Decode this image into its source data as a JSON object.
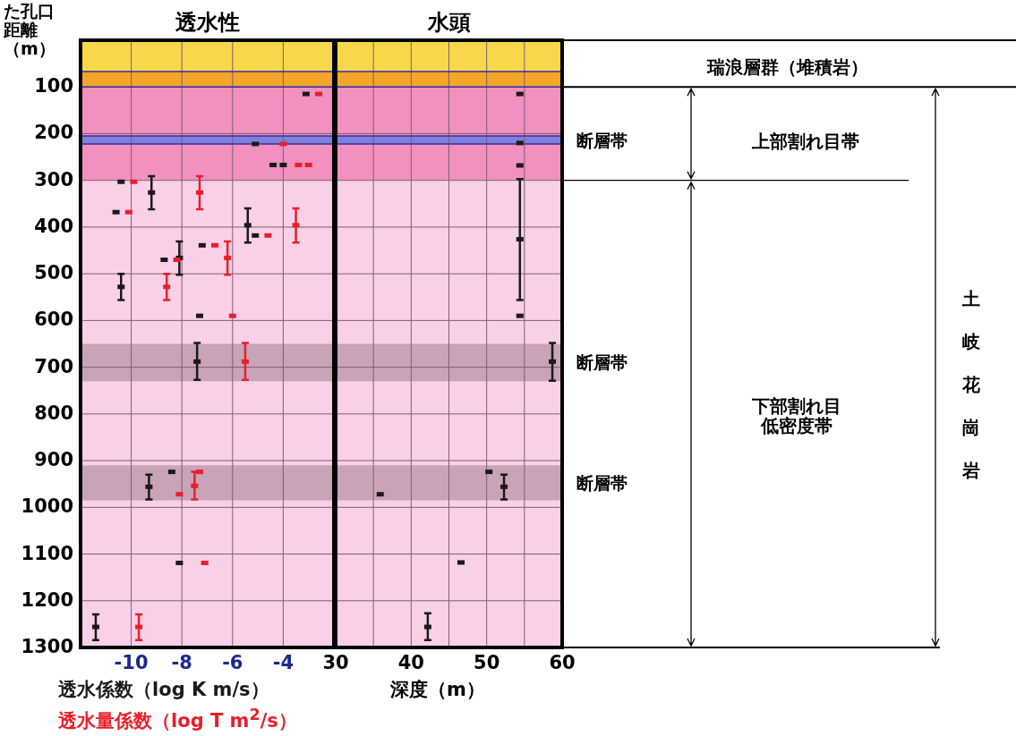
{
  "chart_data": [
    {
      "type": "scatter",
      "title": "透水性",
      "ylabel": "た孔口距離（m）",
      "xlim": [
        -12,
        -2
      ],
      "xticks": [
        -10,
        -8,
        -6,
        -4
      ],
      "ylim": [
        1300,
        0
      ],
      "yticks": [
        100,
        200,
        300,
        400,
        500,
        600,
        700,
        800,
        900,
        1000,
        1100,
        1200,
        1300
      ],
      "grid": true,
      "marker": "square",
      "bands": [
        {
          "axis": "y",
          "from": 0,
          "to": 67,
          "color": "#f8d84a"
        },
        {
          "axis": "y",
          "from": 67,
          "to": 100,
          "color": "#f4a52a"
        },
        {
          "axis": "y",
          "from": 100,
          "to": 300,
          "color": "#f290c0"
        },
        {
          "axis": "y",
          "from": 300,
          "to": 1300,
          "color": "#f9d0e8"
        },
        {
          "axis": "y",
          "from": 205,
          "to": 222,
          "color": "#8080d8"
        },
        {
          "axis": "y",
          "from": 650,
          "to": 730,
          "color": "#c9a3b7"
        },
        {
          "axis": "y",
          "from": 910,
          "to": 985,
          "color": "#c9a3b7"
        }
      ],
      "series": [
        {
          "name": "透水係数（log K m/s）",
          "color": "#1a1a1a",
          "x": [
            -3.1,
            -5.1,
            -4.4,
            -4.0,
            -10.4,
            -9.2,
            -10.6,
            -5.4,
            -5.1,
            -7.2,
            -8.1,
            -8.7,
            -10.4,
            -7.3,
            -7.4,
            -8.4,
            -9.3,
            -8.1,
            -11.4
          ],
          "values": [
            115,
            222,
            267,
            267,
            303,
            326,
            368,
            396,
            418,
            439,
            466,
            470,
            528,
            590,
            688,
            924,
            956,
            1119,
            1256
          ],
          "errors": [
            null,
            null,
            null,
            null,
            null,
            [
              291,
              362
            ],
            null,
            [
              360,
              433
            ],
            null,
            null,
            [
              431,
              502
            ],
            null,
            [
              500,
              556
            ],
            null,
            [
              648,
              727
            ],
            null,
            [
              930,
              983
            ],
            null,
            [
              1229,
              1284
            ]
          ]
        },
        {
          "name": "透水量係数（log T m$^{2}$/s）",
          "color": "#e8202a",
          "x": [
            -2.6,
            -4.0,
            -3.4,
            -3.0,
            -9.9,
            -7.3,
            -10.1,
            -3.5,
            -4.6,
            -6.7,
            -6.2,
            -8.2,
            -8.6,
            -6.0,
            -5.5,
            -7.3,
            -8.1,
            -7.5,
            -7.1,
            -9.7
          ],
          "values": [
            115,
            222,
            267,
            267,
            303,
            326,
            368,
            396,
            418,
            439,
            466,
            470,
            528,
            590,
            688,
            924,
            972,
            954,
            1119,
            1256
          ],
          "errors": [
            null,
            null,
            null,
            null,
            null,
            [
              291,
              362
            ],
            null,
            [
              360,
              433
            ],
            null,
            null,
            [
              431,
              502
            ],
            null,
            [
              500,
              556
            ],
            null,
            [
              648,
              727
            ],
            null,
            null,
            [
              924,
              983
            ],
            null,
            [
              1229,
              1284
            ]
          ]
        }
      ]
    },
    {
      "type": "scatter",
      "title": "水頭",
      "xlabel": "深度（m）",
      "xlim": [
        30,
        60
      ],
      "xticks": [
        30,
        {
          "value": 35,
          "label": null
        },
        40,
        {
          "value": 45,
          "label": null
        },
        50,
        {
          "value": 55,
          "label": null
        },
        60
      ],
      "ylim": [
        1300,
        0
      ],
      "yticks": [
        100,
        200,
        300,
        400,
        500,
        600,
        700,
        800,
        900,
        1000,
        1100,
        1200,
        1300
      ],
      "tick_labels": "x",
      "grid": true,
      "marker": "square",
      "bands": [
        {
          "axis": "y",
          "from": 0,
          "to": 67,
          "color": "#f8d84a"
        },
        {
          "axis": "y",
          "from": 67,
          "to": 100,
          "color": "#f4a52a"
        },
        {
          "axis": "y",
          "from": 100,
          "to": 300,
          "color": "#f290c0"
        },
        {
          "axis": "y",
          "from": 300,
          "to": 1300,
          "color": "#f9d0e8"
        },
        {
          "axis": "y",
          "from": 205,
          "to": 222,
          "color": "#8080d8",
          "label": "断層帯"
        },
        {
          "axis": "y",
          "from": 650,
          "to": 730,
          "color": "#c9a3b7",
          "label": "断層帯"
        },
        {
          "axis": "y",
          "from": 910,
          "to": 985,
          "color": "#c9a3b7",
          "label": "断層帯"
        }
      ],
      "series": [
        {
          "color": "#1a1a1a",
          "x": [
            54.4,
            54.4,
            54.4,
            54.4,
            54.4,
            58.7,
            50.3,
            52.3,
            35.9,
            46.6,
            42.2
          ],
          "values": [
            115,
            220,
            268,
            426,
            590,
            688,
            924,
            956,
            972,
            1118,
            1256
          ],
          "errors": [
            null,
            null,
            null,
            [
              297,
              556
            ],
            null,
            [
              648,
              729
            ],
            null,
            [
              930,
              983
            ],
            null,
            null,
            [
              1227,
              1284
            ]
          ]
        }
      ],
      "annotations": [
        "瑞浪層群（堆積岩）",
        "上部割れ目帯",
        "下部割れ目低密度帯",
        "土岐花崗岩"
      ]
    }
  ]
}
